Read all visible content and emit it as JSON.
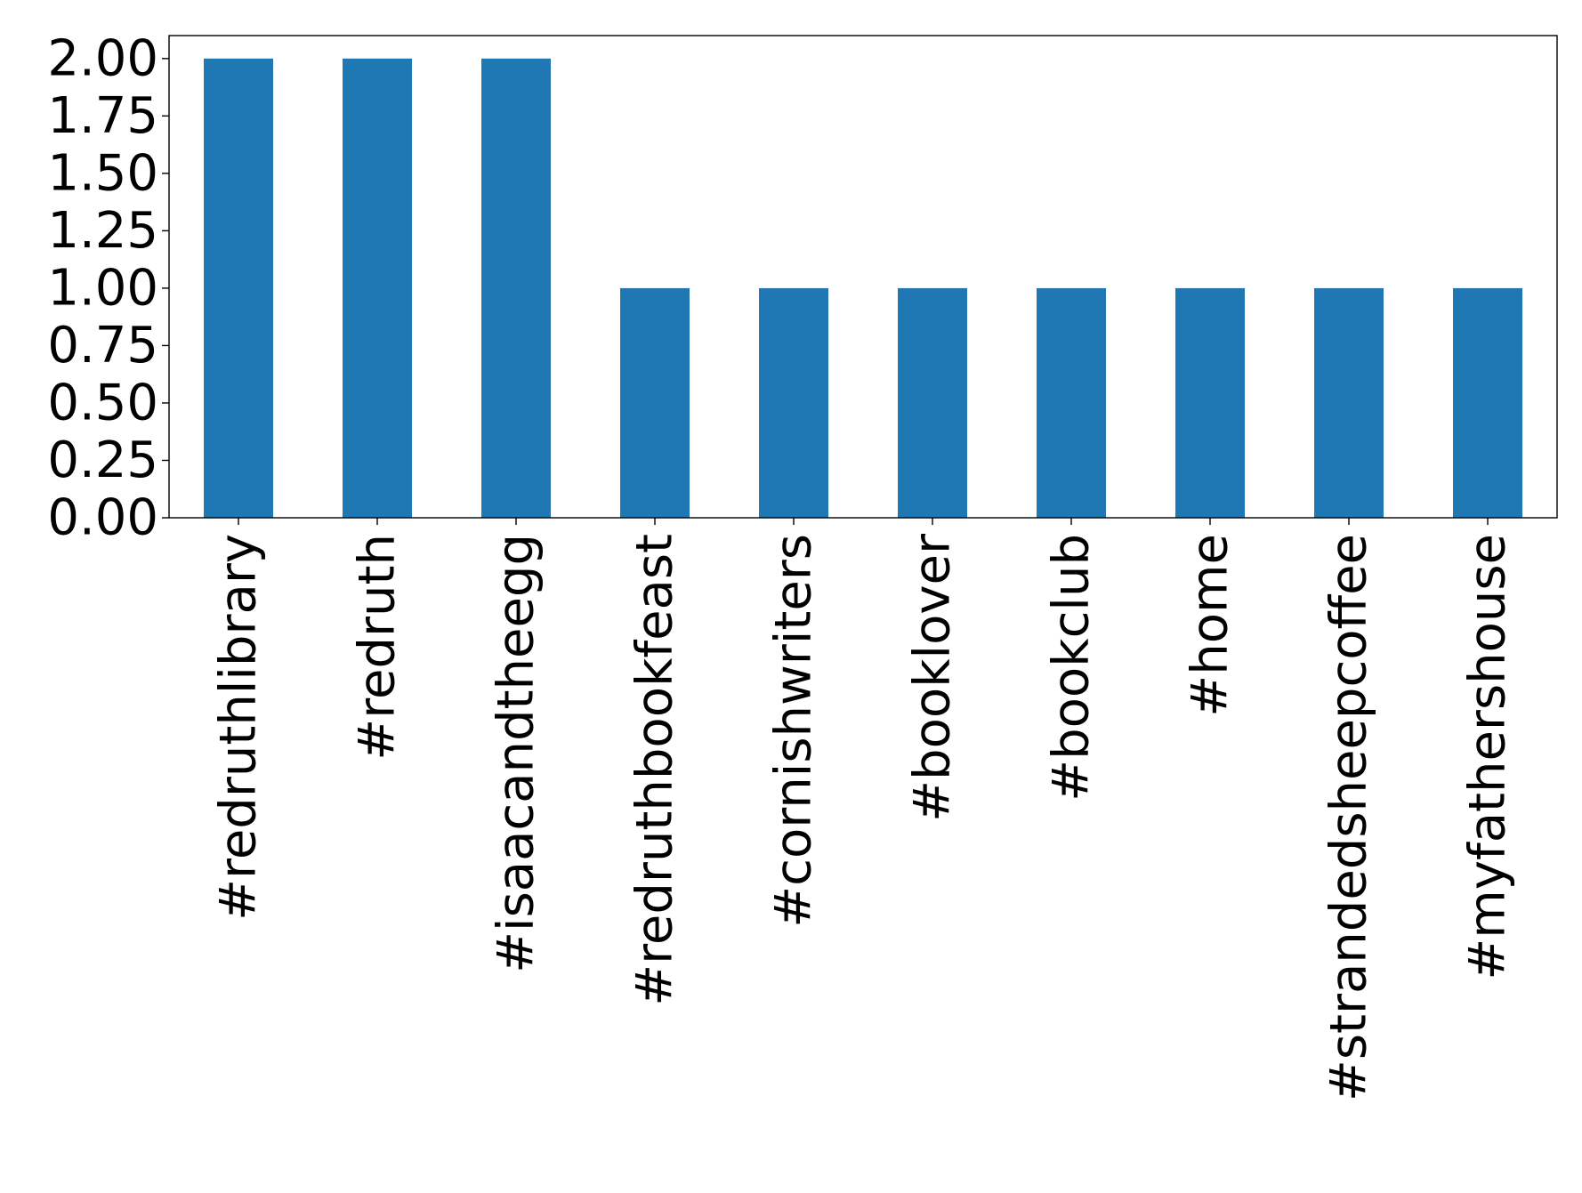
{
  "chart_data": {
    "type": "bar",
    "title": "",
    "xlabel": "",
    "ylabel": "",
    "categories": [
      "#redruthlibrary",
      "#redruth",
      "#isaacandtheegg",
      "#redruthbookfeast",
      "#cornishwriters",
      "#booklover",
      "#bookclub",
      "#home",
      "#strandedsheepcoffee",
      "#myfathershouse"
    ],
    "values": [
      2,
      2,
      2,
      1,
      1,
      1,
      1,
      1,
      1,
      1
    ],
    "ylim": [
      0,
      2.1
    ],
    "yticks": [
      0,
      0.25,
      0.5,
      0.75,
      1,
      1.25,
      1.5,
      1.75,
      2
    ],
    "ytick_labels": [
      "0.00",
      "0.25",
      "0.50",
      "0.75",
      "1.00",
      "1.25",
      "1.50",
      "1.75",
      "2.00"
    ],
    "grid": false,
    "legend": "none",
    "bar_color": "#1f77b4"
  }
}
